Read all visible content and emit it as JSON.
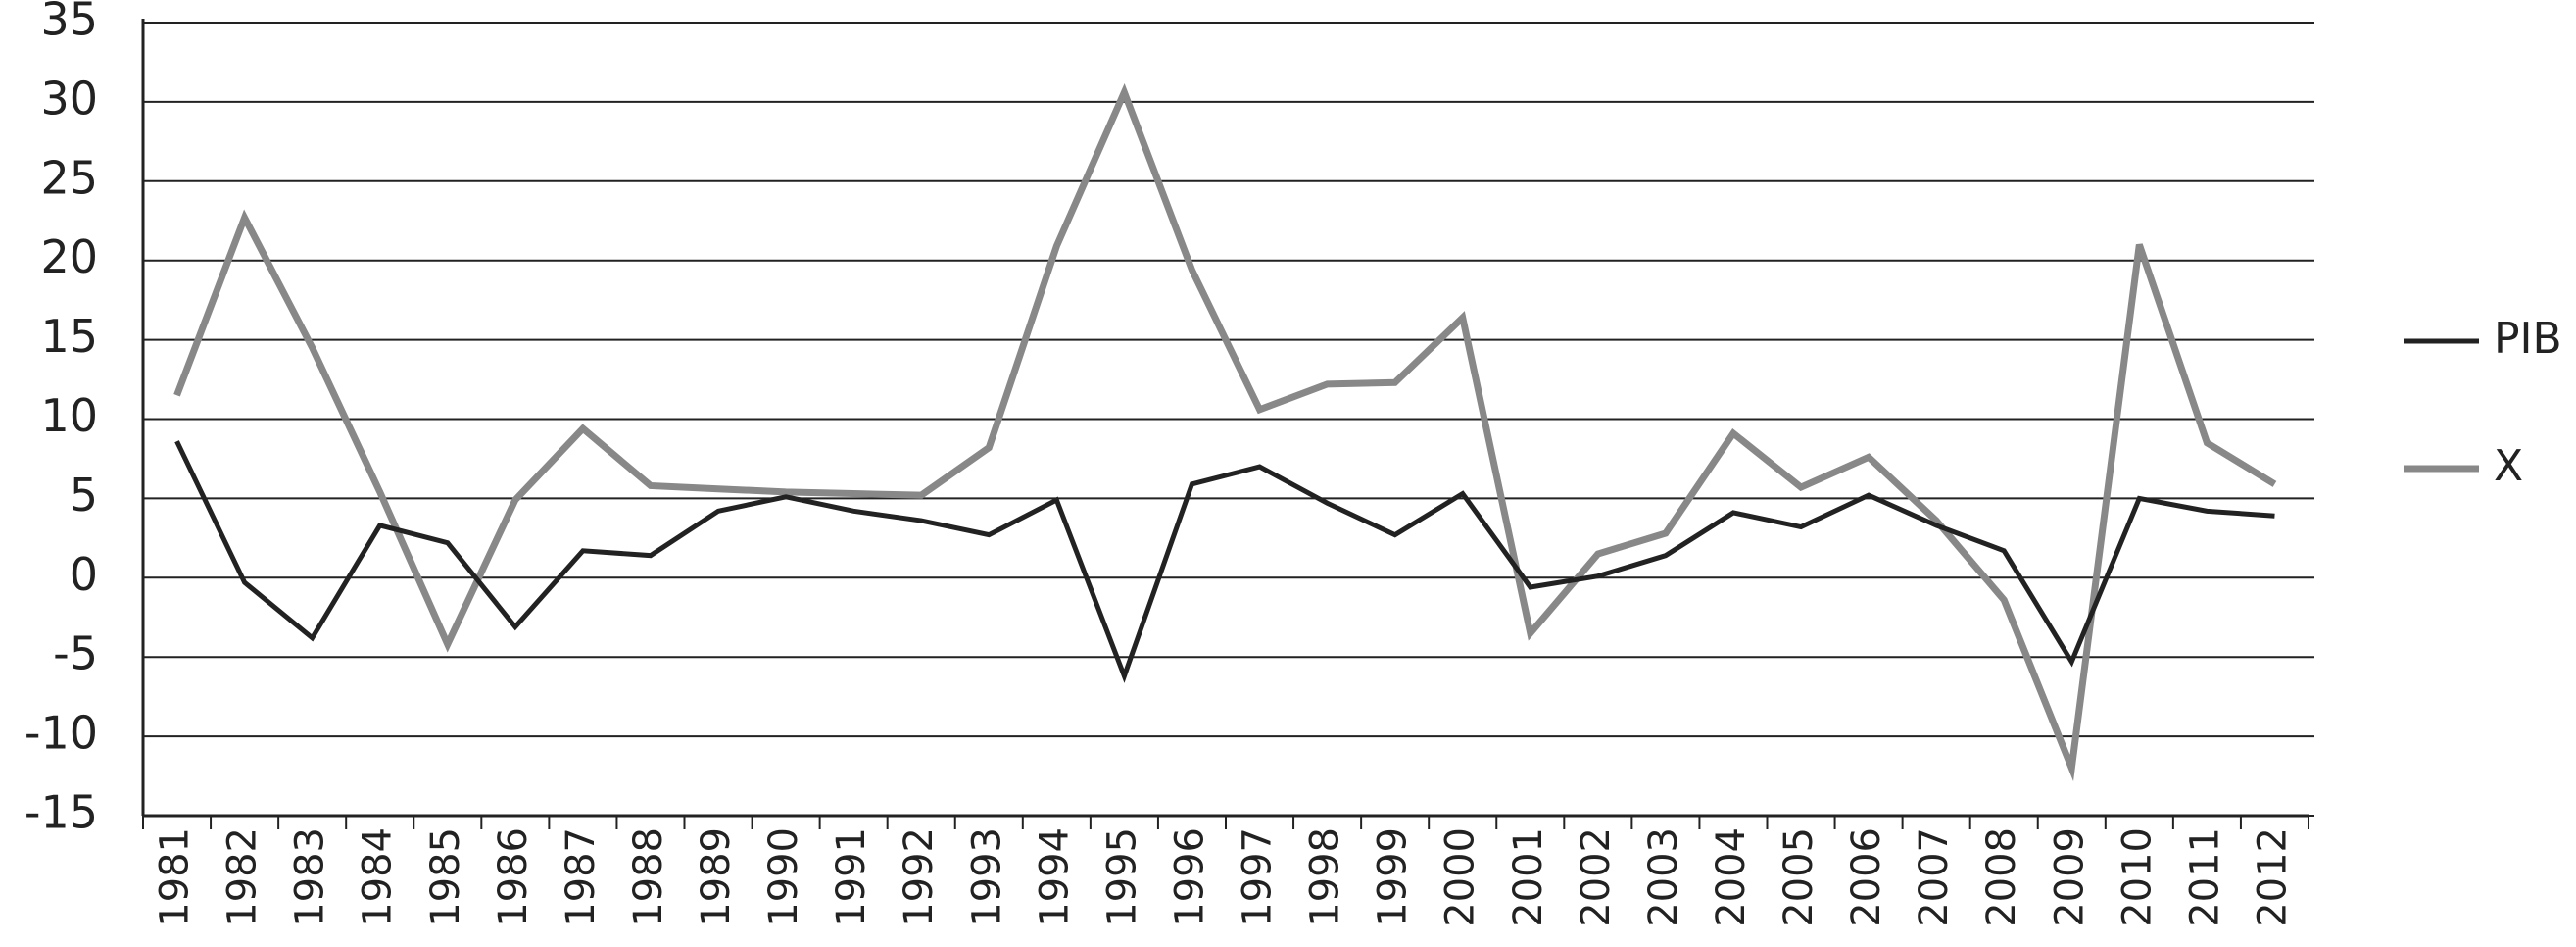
{
  "chart_data": {
    "type": "line",
    "categories": [
      "1981",
      "1982",
      "1983",
      "1984",
      "1985",
      "1986",
      "1987",
      "1988",
      "1989",
      "1990",
      "1991",
      "1992",
      "1993",
      "1994",
      "1995",
      "1996",
      "1997",
      "1998",
      "1999",
      "2000",
      "2001",
      "2002",
      "2003",
      "2004",
      "2005",
      "2006",
      "2007",
      "2008",
      "2009",
      "2010",
      "2011",
      "2012"
    ],
    "series": [
      {
        "name": "PIB",
        "color": "#222222",
        "values": [
          8.6,
          -0.3,
          -3.8,
          3.3,
          2.2,
          -3.1,
          1.7,
          1.4,
          4.2,
          5.1,
          4.2,
          3.6,
          2.7,
          4.9,
          -6.2,
          5.9,
          7.0,
          4.7,
          2.7,
          5.3,
          -0.6,
          0.1,
          1.4,
          4.1,
          3.2,
          5.2,
          3.3,
          1.7,
          -5.3,
          5.0,
          4.2,
          3.9
        ]
      },
      {
        "name": "X",
        "color": "#888888",
        "values": [
          11.5,
          22.7,
          14.5,
          5.4,
          -4.2,
          4.9,
          9.4,
          5.8,
          5.6,
          5.4,
          5.3,
          5.2,
          8.2,
          20.9,
          30.6,
          19.4,
          10.6,
          12.2,
          12.3,
          16.4,
          -3.5,
          1.5,
          2.8,
          9.1,
          5.7,
          7.6,
          3.6,
          -1.4,
          -12.0,
          21.0,
          8.5,
          5.9
        ]
      }
    ],
    "ylim": [
      -15,
      35
    ],
    "yticks": [
      -15,
      -10,
      -5,
      0,
      5,
      10,
      15,
      20,
      25,
      30,
      35
    ],
    "grid": true,
    "legend": "right"
  }
}
